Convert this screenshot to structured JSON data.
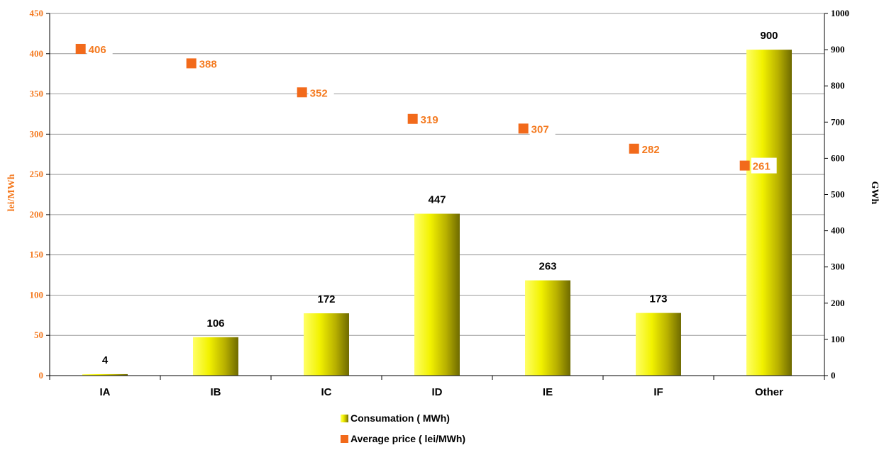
{
  "chart_data": {
    "type": "bar",
    "categories": [
      "IA",
      "IB",
      "IC",
      "ID",
      "IE",
      "IF",
      "Other"
    ],
    "series": [
      {
        "name": "Consumation ( MWh)",
        "type": "bar",
        "axis": "right",
        "values": [
          4,
          106,
          172,
          447,
          263,
          173,
          900
        ],
        "color": "#e8e800"
      },
      {
        "name": "Average price ( lei/MWh)",
        "type": "scatter",
        "axis": "left",
        "values": [
          406,
          388,
          352,
          319,
          307,
          282,
          261
        ],
        "color": "#f26a1b"
      }
    ],
    "ylabel_left": "lei/MWh",
    "ylabel_right": "GWh",
    "ylim_left": [
      0,
      450
    ],
    "ylim_right": [
      0,
      1000
    ],
    "yticks_left": [
      "0",
      "50",
      "100",
      "150",
      "200",
      "250",
      "300",
      "350",
      "400",
      "450"
    ],
    "yticks_right": [
      "0",
      "100",
      "200",
      "300",
      "400",
      "500",
      "600",
      "700",
      "800",
      "900",
      "1000"
    ],
    "grid": true,
    "legend_position": "bottom"
  }
}
